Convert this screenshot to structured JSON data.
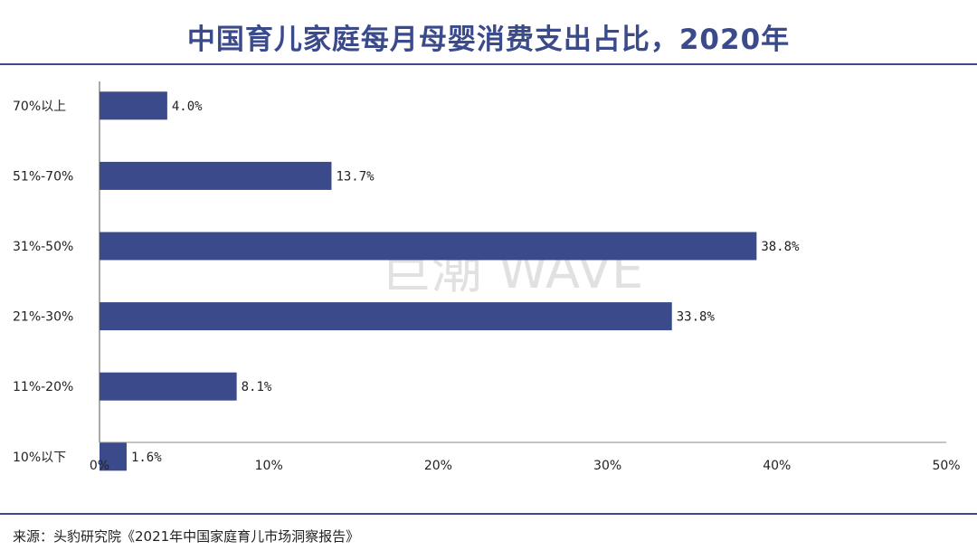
{
  "header": {
    "title": "中国育儿家庭每月母婴消费支出占比，2020年"
  },
  "watermark": "巨潮 WAVE",
  "footer": {
    "source": "来源：头豹研究院《2021年中国家庭育儿市场洞察报告》"
  },
  "colors": {
    "accent": "#3b4a8a",
    "bar": "#3b4a8a",
    "rule": "#3b4a8a"
  },
  "chart_data": {
    "type": "bar",
    "orientation": "horizontal",
    "title": "中国育儿家庭每月母婴消费支出占比，2020年",
    "categories": [
      "70%以上",
      "51%-70%",
      "31%-50%",
      "21%-30%",
      "11%-20%",
      "10%以下"
    ],
    "values": [
      4.0,
      13.7,
      38.8,
      33.8,
      8.1,
      1.6
    ],
    "data_labels": [
      "4.0%",
      "13.7%",
      "38.8%",
      "33.8%",
      "8.1%",
      "1.6%"
    ],
    "xlim": [
      0,
      50
    ],
    "xticks": [
      0,
      10,
      20,
      30,
      40,
      50
    ],
    "xtick_labels": [
      "0%",
      "10%",
      "20%",
      "30%",
      "40%",
      "50%"
    ],
    "xlabel": "",
    "ylabel": "",
    "grid": false,
    "legend": "none"
  }
}
